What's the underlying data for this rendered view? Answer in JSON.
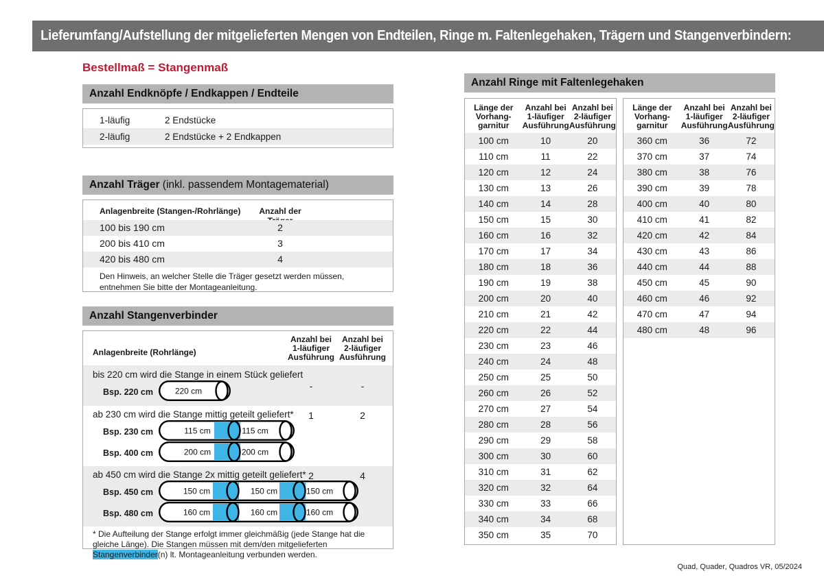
{
  "title": "Lieferumfang/Aufstellung der mitgelieferten Mengen von Endteilen, Ringe m. Faltenlegehaken, Trägern und Stangenverbindern:",
  "subtitle": "Bestellmaß = Stangenmaß",
  "colors": {
    "titlebar_gray": "#6f6f6f",
    "section_header_gray": "#b3b3b3",
    "row_stripe_gray": "#ebebeb",
    "accent_red": "#c31930",
    "connector_blue": "#3db5e6"
  },
  "endteile": {
    "header": "Anzahl Endknöpfe / Endkappen / Endteile",
    "rows": [
      [
        "1-läufig",
        "2 Endstücke"
      ],
      [
        "2-läufig",
        "2 Endstücke + 2 Endkappen"
      ]
    ]
  },
  "traeger": {
    "header_bold": "Anzahl Träger",
    "header_rest": " (inkl. passendem Montagematerial)",
    "col1": "Anlagenbreite (Stangen-/Rohrlänge)",
    "col2": "Anzahl der Träger",
    "rows": [
      [
        "100 bis 190 cm",
        "2"
      ],
      [
        "200 bis 410 cm",
        "3"
      ],
      [
        "420 bis 480 cm",
        "4"
      ]
    ],
    "note": "Den Hinweis, an welcher Stelle die Träger gesetzt werden müssen, entnehmen Sie bitte der Montageanleitung."
  },
  "verbinder": {
    "header": "Anzahl Stangenverbinder",
    "col1": "Anlagenbreite (Rohrlänge)",
    "col2_lines": [
      "Anzahl bei",
      "1-läufiger",
      "Ausführung"
    ],
    "col3_lines": [
      "Anzahl bei",
      "2-läufiger",
      "Ausführung"
    ],
    "rows": [
      {
        "text": "bis 220 cm wird die Stange in einem Stück geliefert",
        "v1": "-",
        "v2": "-",
        "shaded": true,
        "rods": [
          {
            "label": "Bsp. 220 cm",
            "segments": [
              "220 cm"
            ]
          }
        ]
      },
      {
        "text": "ab 230 cm wird die Stange mittig geteilt geliefert*",
        "v1": "1",
        "v2": "2",
        "shaded": false,
        "rods": [
          {
            "label": "Bsp. 230 cm",
            "segments": [
              "115 cm",
              "115 cm"
            ]
          },
          {
            "label": "Bsp. 400 cm",
            "segments": [
              "200 cm",
              "200 cm"
            ]
          }
        ]
      },
      {
        "text": "ab 450 cm wird die Stange 2x mittig geteilt geliefert*",
        "v1": "2",
        "v2": "4",
        "shaded": true,
        "rods": [
          {
            "label": "Bsp. 450 cm",
            "segments": [
              "150 cm",
              "150 cm",
              "150 cm"
            ]
          },
          {
            "label": "Bsp. 480 cm",
            "segments": [
              "160 cm",
              "160 cm",
              "160 cm"
            ]
          }
        ]
      }
    ],
    "footnote_pre": "* Die Aufteilung der Stange erfolgt immer gleichmäßig (jede Stange hat die gleiche Länge). Die Stangen müssen mit dem/den mitgelieferten ",
    "footnote_highlight": "Stangenverbinder",
    "footnote_post": "(n) lt. Montageanleitung verbunden werden."
  },
  "rings": {
    "header": "Anzahl Ringe mit Faltenlegehaken",
    "col_headers": [
      [
        "Länge der",
        "Vorhang-",
        "garnitur"
      ],
      [
        "Anzahl bei",
        "1-läufiger",
        "Ausführung"
      ],
      [
        "Anzahl bei",
        "2-läufiger",
        "Ausführung"
      ]
    ],
    "tables": [
      {
        "rows": [
          [
            "100 cm",
            "10",
            "20"
          ],
          [
            "110 cm",
            "11",
            "22"
          ],
          [
            "120 cm",
            "12",
            "24"
          ],
          [
            "130 cm",
            "13",
            "26"
          ],
          [
            "140 cm",
            "14",
            "28"
          ],
          [
            "150 cm",
            "15",
            "30"
          ],
          [
            "160 cm",
            "16",
            "32"
          ],
          [
            "170 cm",
            "17",
            "34"
          ],
          [
            "180 cm",
            "18",
            "36"
          ],
          [
            "190 cm",
            "19",
            "38"
          ],
          [
            "200 cm",
            "20",
            "40"
          ],
          [
            "210 cm",
            "21",
            "42"
          ],
          [
            "220 cm",
            "22",
            "44"
          ],
          [
            "230 cm",
            "23",
            "46"
          ],
          [
            "240 cm",
            "24",
            "48"
          ],
          [
            "250 cm",
            "25",
            "50"
          ],
          [
            "260 cm",
            "26",
            "52"
          ],
          [
            "270 cm",
            "27",
            "54"
          ],
          [
            "280 cm",
            "28",
            "56"
          ],
          [
            "290 cm",
            "29",
            "58"
          ],
          [
            "300 cm",
            "30",
            "60"
          ],
          [
            "310 cm",
            "31",
            "62"
          ],
          [
            "320 cm",
            "32",
            "64"
          ],
          [
            "330 cm",
            "33",
            "66"
          ],
          [
            "340 cm",
            "34",
            "68"
          ],
          [
            "350 cm",
            "35",
            "70"
          ]
        ]
      },
      {
        "rows": [
          [
            "360 cm",
            "36",
            "72"
          ],
          [
            "370 cm",
            "37",
            "74"
          ],
          [
            "380 cm",
            "38",
            "76"
          ],
          [
            "390 cm",
            "39",
            "78"
          ],
          [
            "400 cm",
            "40",
            "80"
          ],
          [
            "410 cm",
            "41",
            "82"
          ],
          [
            "420 cm",
            "42",
            "84"
          ],
          [
            "430 cm",
            "43",
            "86"
          ],
          [
            "440 cm",
            "44",
            "88"
          ],
          [
            "450 cm",
            "45",
            "90"
          ],
          [
            "460 cm",
            "46",
            "92"
          ],
          [
            "470 cm",
            "47",
            "94"
          ],
          [
            "480 cm",
            "48",
            "96"
          ]
        ]
      }
    ]
  },
  "footer": "Quad, Quader, Quadros VR, 05/2024"
}
